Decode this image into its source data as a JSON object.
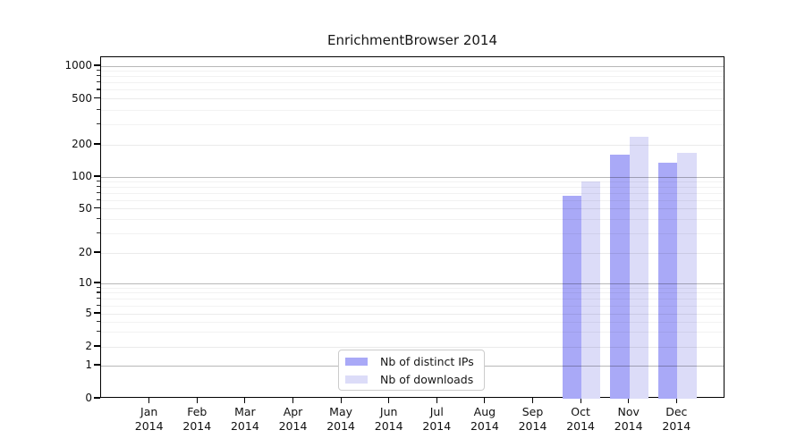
{
  "chart_data": {
    "type": "bar",
    "title": "EnrichmentBrowser 2014",
    "x_categories": [
      "Jan",
      "Feb",
      "Mar",
      "Apr",
      "May",
      "Jun",
      "Jul",
      "Aug",
      "Sep",
      "Oct",
      "Nov",
      "Dec"
    ],
    "x_year": "2014",
    "y_ticks": [
      0,
      1,
      2,
      5,
      10,
      20,
      50,
      100,
      200,
      500,
      1000
    ],
    "y_scale": "symlog",
    "ylim": [
      0,
      1200
    ],
    "grid": true,
    "legend_position": "inside lower-center",
    "series": [
      {
        "name": "Nb of distinct IPs",
        "color": "#a9a9f7",
        "values": [
          0,
          0,
          0,
          0,
          0,
          0,
          0,
          0,
          0,
          67,
          163,
          136
        ]
      },
      {
        "name": "Nb of downloads",
        "color": "#dcdcf8",
        "values": [
          0,
          0,
          0,
          0,
          0,
          0,
          0,
          0,
          0,
          90,
          235,
          167
        ]
      }
    ]
  }
}
